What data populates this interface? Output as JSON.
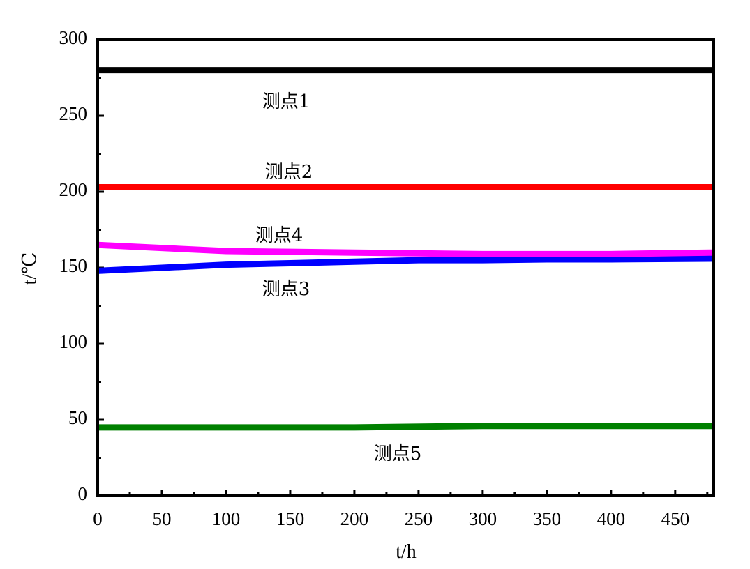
{
  "chart_data": {
    "type": "line",
    "xlabel": "t/h",
    "ylabel": "t/℃",
    "xlim": [
      0,
      480
    ],
    "ylim": [
      0,
      300
    ],
    "xticks": [
      0,
      50,
      100,
      150,
      200,
      250,
      300,
      350,
      400,
      450
    ],
    "yticks": [
      0,
      50,
      100,
      150,
      200,
      250,
      300
    ],
    "grid": false,
    "legend": "none",
    "series": [
      {
        "name": "测点1",
        "color": "#000000",
        "x": [
          0,
          100,
          200,
          300,
          400,
          480
        ],
        "values": [
          280,
          280,
          280,
          280,
          280,
          280
        ]
      },
      {
        "name": "测点2",
        "color": "#ff0000",
        "x": [
          0,
          100,
          200,
          300,
          400,
          480
        ],
        "values": [
          203,
          203,
          203,
          203,
          203,
          203
        ]
      },
      {
        "name": "测点3",
        "color": "#0000ff",
        "x": [
          0,
          50,
          100,
          150,
          200,
          250,
          300,
          350,
          400,
          480
        ],
        "values": [
          148,
          150,
          152,
          153,
          154,
          155,
          155,
          155.5,
          155.5,
          156
        ]
      },
      {
        "name": "测点4",
        "color": "#ff00ff",
        "x": [
          0,
          50,
          100,
          150,
          200,
          250,
          300,
          350,
          400,
          480
        ],
        "values": [
          165,
          163,
          161,
          160.5,
          160,
          159.5,
          159,
          159,
          159,
          160
        ]
      },
      {
        "name": "测点5",
        "color": "#008000",
        "x": [
          0,
          100,
          200,
          300,
          400,
          480
        ],
        "values": [
          45,
          45,
          45,
          46,
          46,
          46
        ]
      }
    ]
  }
}
